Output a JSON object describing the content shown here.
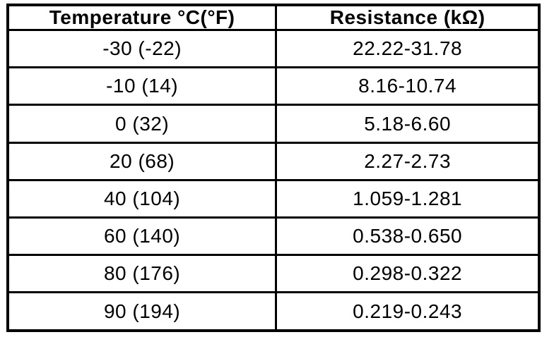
{
  "page": {
    "background_color": "#ffffff",
    "border_color": "#000000"
  },
  "table": {
    "columns": [
      {
        "label": "Temperature °C(°F)"
      },
      {
        "label": "Resistance (kΩ)"
      }
    ],
    "rows": [
      {
        "temperature": "-30 (-22)",
        "resistance": "22.22-31.78"
      },
      {
        "temperature": "-10 (14)",
        "resistance": "8.16-10.74"
      },
      {
        "temperature": "0 (32)",
        "resistance": "5.18-6.60"
      },
      {
        "temperature": "20 (68)",
        "resistance": "2.27-2.73"
      },
      {
        "temperature": "40 (104)",
        "resistance": "1.059-1.281"
      },
      {
        "temperature": "60 (140)",
        "resistance": "0.538-0.650"
      },
      {
        "temperature": "80 (176)",
        "resistance": "0.298-0.322"
      },
      {
        "temperature": "90 (194)",
        "resistance": "0.219-0.243"
      }
    ]
  },
  "chart_data": {
    "type": "table",
    "columns": [
      "Temperature °C(°F)",
      "Resistance (kΩ)"
    ],
    "rows": [
      [
        "-30 (-22)",
        "22.22-31.78"
      ],
      [
        "-10 (14)",
        "8.16-10.74"
      ],
      [
        "0 (32)",
        "5.18-6.60"
      ],
      [
        "20 (68)",
        "2.27-2.73"
      ],
      [
        "40 (104)",
        "1.059-1.281"
      ],
      [
        "60 (140)",
        "0.538-0.650"
      ],
      [
        "80 (176)",
        "0.298-0.322"
      ],
      [
        "90 (194)",
        "0.219-0.243"
      ]
    ]
  }
}
